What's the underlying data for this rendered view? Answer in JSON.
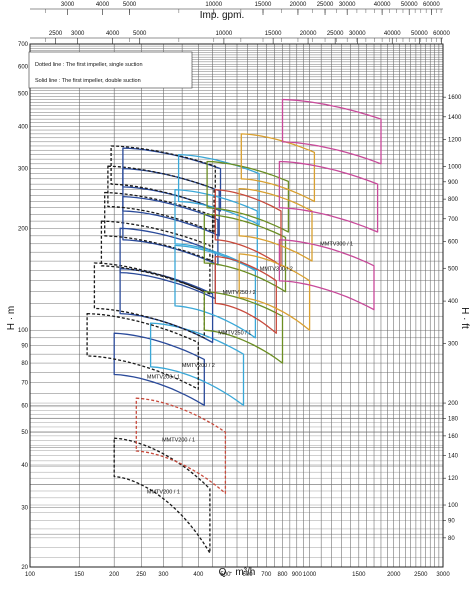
{
  "chart_data": {
    "type": "line",
    "title": "",
    "scale": "log-log",
    "grid": true,
    "xlabel": "Q · m³/h",
    "ylabel": "H · m",
    "y2label": "H · ft",
    "x2label": "Imp. gpm.",
    "xlim": [
      100,
      3000
    ],
    "ylim": [
      20,
      700
    ],
    "x_ticks": [
      "100",
      "150",
      "200",
      "250",
      "300",
      "400",
      "500",
      "600",
      "700",
      "800",
      "900",
      "1000",
      "1500",
      "2000",
      "2500",
      "3000"
    ],
    "y_ticks": [
      "20",
      "30",
      "40",
      "50",
      "60",
      "70",
      "80",
      "90",
      "100",
      "200",
      "300",
      "400",
      "500",
      "600",
      "700"
    ],
    "y2_ticks": [
      "80",
      "90",
      "100",
      "120",
      "140",
      "160",
      "180",
      "200",
      "300",
      "400",
      "500",
      "600",
      "700",
      "800",
      "900",
      "1000",
      "1200",
      "1400",
      "1600"
    ],
    "top_outer_ticks": [
      "3000",
      "4000",
      "5000",
      "10000",
      "15000",
      "20000",
      "25000",
      "30000",
      "40000",
      "50000",
      "60000"
    ],
    "top_inner_ticks": [
      "2500",
      "3000",
      "4000",
      "5000",
      "10000",
      "15000",
      "20000",
      "25000",
      "30000",
      "40000",
      "50000",
      "60000"
    ],
    "notes": {
      "dotted": "Dotted line : The first impeller, single suction",
      "solid": "Solid line : The first impeller, double suction"
    },
    "series": [
      {
        "name": "MMTV200",
        "color": "#1a1a1a",
        "solid": false,
        "q": [
          200,
          440
        ],
        "h": [
          [
            22,
            37
          ],
          [
            34,
            48
          ]
        ],
        "label": "MMTV200 / 1",
        "label_q": 300,
        "label_h": 33
      },
      {
        "name": "MMTV200",
        "color": "#c84a3c",
        "solid": false,
        "q": [
          240,
          500
        ],
        "h": [
          [
            33,
            44
          ],
          [
            50,
            63
          ]
        ],
        "label": "MMTV200 / 1",
        "label_q": 340,
        "label_h": 47
      },
      {
        "name": "MMTV200",
        "color": "#2a4a9a",
        "solid": true,
        "q": [
          200,
          420
        ],
        "h": [
          [
            60,
            74
          ],
          [
            82,
            98
          ]
        ],
        "label": "MMTV200 / 1",
        "label_q": 300,
        "label_h": 72
      },
      {
        "name": "MMTV200",
        "color": "#3aa8d8",
        "solid": true,
        "q": [
          270,
          580
        ],
        "h": [
          [
            60,
            78
          ],
          [
            85,
            105
          ]
        ],
        "label": "MMTV200 / 2",
        "label_q": 400,
        "label_h": 78
      },
      {
        "name": "MMTV200",
        "color": "#1a1a1a",
        "solid": false,
        "q": [
          160,
          400
        ],
        "h": [
          [
            67,
            84
          ],
          [
            92,
            112
          ]
        ],
        "label": "",
        "label_q": 0,
        "label_h": 0
      },
      {
        "name": "MMTV200",
        "color": "#2a4a9a",
        "solid": true,
        "q": [
          210,
          450
        ],
        "h": [
          [
            92,
            112
          ],
          [
            128,
            152
          ]
        ],
        "label": "",
        "label_q": 0,
        "label_h": 0
      },
      {
        "name": "MMTV200",
        "color": "#1a1a1a",
        "solid": false,
        "q": [
          170,
          420
        ],
        "h": [
          [
            95,
            116
          ],
          [
            130,
            158
          ]
        ],
        "label": "",
        "label_q": 0,
        "label_h": 0
      },
      {
        "name": "MMTV200",
        "color": "#2a4a9a",
        "solid": true,
        "q": [
          210,
          460
        ],
        "h": [
          [
            124,
            148
          ],
          [
            170,
            200
          ]
        ],
        "label": "",
        "label_q": 0,
        "label_h": 0
      },
      {
        "name": "MMTV200",
        "color": "#1a1a1a",
        "solid": false,
        "q": [
          180,
          440
        ],
        "h": [
          [
            128,
            155
          ],
          [
            178,
            210
          ]
        ],
        "label": "",
        "label_q": 0,
        "label_h": 0
      },
      {
        "name": "MMTV200",
        "color": "#2a4a9a",
        "solid": true,
        "q": [
          215,
          470
        ],
        "h": [
          [
            156,
            185
          ],
          [
            212,
            248
          ]
        ],
        "label": "",
        "label_q": 0,
        "label_h": 0
      },
      {
        "name": "MMTV200",
        "color": "#1a1a1a",
        "solid": false,
        "q": [
          185,
          450
        ],
        "h": [
          [
            160,
            190
          ],
          [
            218,
            255
          ]
        ],
        "label": "",
        "label_q": 0,
        "label_h": 0
      },
      {
        "name": "MMTV200",
        "color": "#2a4a9a",
        "solid": true,
        "q": [
          215,
          475
        ],
        "h": [
          [
            190,
            225
          ],
          [
            258,
            300
          ]
        ],
        "label": "",
        "label_q": 0,
        "label_h": 0
      },
      {
        "name": "MMTV200",
        "color": "#1a1a1a",
        "solid": false,
        "q": [
          190,
          455
        ],
        "h": [
          [
            195,
            232
          ],
          [
            262,
            305
          ]
        ],
        "label": "",
        "label_q": 0,
        "label_h": 0
      },
      {
        "name": "MMTV200",
        "color": "#2a4a9a",
        "solid": true,
        "q": [
          215,
          480
        ],
        "h": [
          [
            225,
            265
          ],
          [
            300,
            345
          ]
        ],
        "label": "",
        "label_q": 0,
        "label_h": 0
      },
      {
        "name": "MMTV200",
        "color": "#1a1a1a",
        "solid": false,
        "q": [
          195,
          460
        ],
        "h": [
          [
            228,
            270
          ],
          [
            305,
            350
          ]
        ],
        "label": "",
        "label_q": 0,
        "label_h": 0
      },
      {
        "name": "MMTV250",
        "color": "#3aa8d8",
        "solid": true,
        "q": [
          330,
          640
        ],
        "h": [
          [
            95,
            118
          ],
          [
            150,
            178
          ]
        ],
        "label": "",
        "label_q": 0,
        "label_h": 0
      },
      {
        "name": "MMTV250",
        "color": "#3aa8d8",
        "solid": true,
        "q": [
          330,
          650
        ],
        "h": [
          [
            150,
            180
          ],
          [
            225,
            260
          ]
        ],
        "label": "",
        "label_q": 0,
        "label_h": 0
      },
      {
        "name": "MMTV250",
        "color": "#3aa8d8",
        "solid": true,
        "q": [
          340,
          660
        ],
        "h": [
          [
            205,
            240
          ],
          [
            290,
            330
          ]
        ],
        "label": "",
        "label_q": 0,
        "label_h": 0
      },
      {
        "name": "MMTV250",
        "color": "#6b8e23",
        "solid": true,
        "q": [
          420,
          800
        ],
        "h": [
          [
            80,
            100
          ],
          [
            110,
            130
          ]
        ],
        "label": "MMTV250 / 1",
        "label_q": 540,
        "label_h": 97
      },
      {
        "name": "MMTV250",
        "color": "#6b8e23",
        "solid": true,
        "q": [
          420,
          820
        ],
        "h": [
          [
            130,
            158
          ],
          [
            188,
            220
          ]
        ],
        "label": "",
        "label_q": 0,
        "label_h": 0
      },
      {
        "name": "MMTV250",
        "color": "#6b8e23",
        "solid": true,
        "q": [
          430,
          840
        ],
        "h": [
          [
            195,
            230
          ],
          [
            275,
            315
          ]
        ],
        "label": "",
        "label_q": 0,
        "label_h": 0
      },
      {
        "name": "MMTV250",
        "color": "#c84a3c",
        "solid": true,
        "q": [
          460,
          760
        ],
        "h": [
          [
            98,
            120
          ],
          [
            140,
            165
          ]
        ],
        "label": "MMTV250 / 2",
        "label_q": 560,
        "label_h": 128
      },
      {
        "name": "MMTV250",
        "color": "#c84a3c",
        "solid": true,
        "q": [
          460,
          790
        ],
        "h": [
          [
            155,
            185
          ],
          [
            225,
            260
          ]
        ],
        "label": "",
        "label_q": 0,
        "label_h": 0
      },
      {
        "name": "MMTV300",
        "color": "#d9a030",
        "solid": true,
        "q": [
          560,
          1000
        ],
        "h": [
          [
            100,
            125
          ],
          [
            140,
            168
          ]
        ],
        "label": "MMTV300 / 2",
        "label_q": 760,
        "label_h": 150
      },
      {
        "name": "MMTV300",
        "color": "#d9a030",
        "solid": true,
        "q": [
          560,
          1020
        ],
        "h": [
          [
            160,
            190
          ],
          [
            225,
            262
          ]
        ],
        "label": "",
        "label_q": 0,
        "label_h": 0
      },
      {
        "name": "MMTV300",
        "color": "#d9a030",
        "solid": true,
        "q": [
          570,
          1040
        ],
        "h": [
          [
            240,
            280
          ],
          [
            335,
            380
          ]
        ],
        "label": "",
        "label_q": 0,
        "label_h": 0
      },
      {
        "name": "MMTV300",
        "color": "#c84a9a",
        "solid": true,
        "q": [
          780,
          1700
        ],
        "h": [
          [
            115,
            140
          ],
          [
            155,
            185
          ]
        ],
        "label": "MMTV300 / 1",
        "label_q": 1250,
        "label_h": 178
      },
      {
        "name": "MMTV300",
        "color": "#c84a9a",
        "solid": true,
        "q": [
          780,
          1750
        ],
        "h": [
          [
            195,
            230
          ],
          [
            270,
            315
          ]
        ],
        "label": "",
        "label_q": 0,
        "label_h": 0
      },
      {
        "name": "MMTV300",
        "color": "#c84a9a",
        "solid": true,
        "q": [
          800,
          1800
        ],
        "h": [
          [
            310,
            360
          ],
          [
            420,
            480
          ]
        ],
        "label": "",
        "label_q": 0,
        "label_h": 0
      }
    ]
  }
}
